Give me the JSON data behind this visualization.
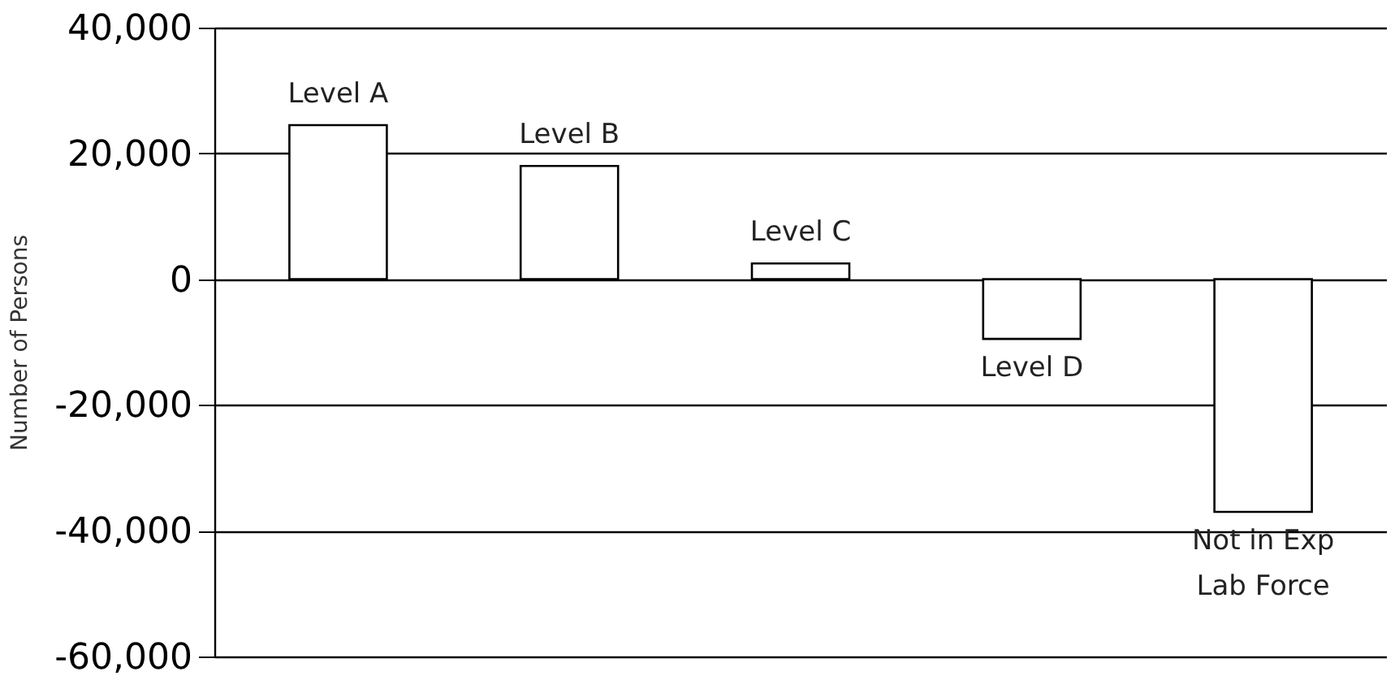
{
  "chart_data": {
    "type": "bar",
    "ylabel": "Number of Persons",
    "categories": [
      "Level A",
      "Level B",
      "Level C",
      "Level D",
      "Not in Exp Lab Force"
    ],
    "values": [
      24500,
      18000,
      2500,
      -9500,
      -37000
    ],
    "color": "#ffffff",
    "ylim": [
      -60000,
      40000
    ],
    "yticks": [
      {
        "value": -60000,
        "label": "-60,000"
      },
      {
        "value": -40000,
        "label": "-40,000"
      },
      {
        "value": -20000,
        "label": "-20,000"
      },
      0,
      {
        "value": 20000,
        "label": "20,000"
      },
      {
        "value": 40000,
        "label": "40,000"
      }
    ],
    "grid": "y",
    "tick_labels": "y"
  }
}
